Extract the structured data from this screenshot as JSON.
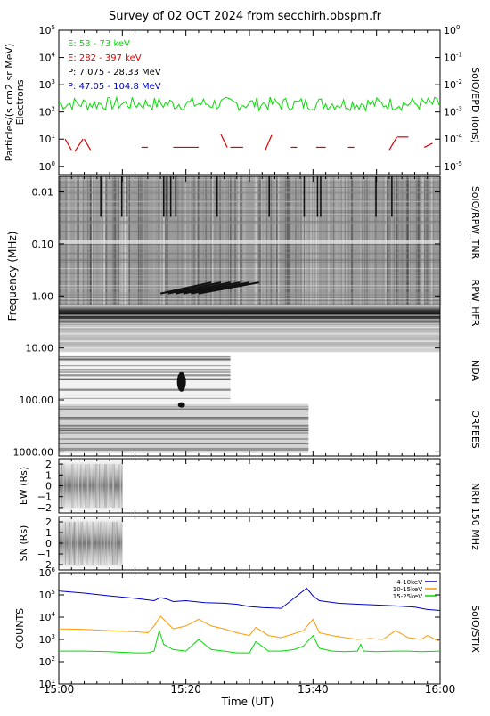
{
  "title": "Survey of 02 OCT 2024 from secchirh.obspm.fr",
  "x_axis": {
    "label": "Time (UT)",
    "range_min": [
      0,
      60
    ],
    "ticks": [
      {
        "min": 0,
        "label": "15:00"
      },
      {
        "min": 20,
        "label": "15:20"
      },
      {
        "min": 40,
        "label": "15:40"
      },
      {
        "min": 60,
        "label": "16:00"
      }
    ]
  },
  "instruments": {
    "epd": "SolO/EPD (ions)",
    "tnr": "SolO/RPW_TNR",
    "hfr": "RPW_HFR",
    "nda": "NDA",
    "orfees": "ORFEES",
    "nrh": "NRH 150 MHz",
    "stix": "SolO/STIX"
  },
  "chart_data": [
    {
      "type": "line",
      "panel": "epd",
      "ylabel": "Particles/(s cm2 sr MeV)",
      "ylabel_line2": "Electrons",
      "ylabel_right": "SolO/EPD (ions)",
      "yscale": "log",
      "ylim": [
        0.5,
        100000
      ],
      "yticks_left": [
        {
          "base": "10",
          "exp": "0"
        },
        {
          "base": "10",
          "exp": "1"
        },
        {
          "base": "10",
          "exp": "2"
        },
        {
          "base": "10",
          "exp": "3"
        },
        {
          "base": "10",
          "exp": "4"
        },
        {
          "base": "10",
          "exp": "5"
        }
      ],
      "yticks_right": [
        {
          "base": "10",
          "exp": "-5"
        },
        {
          "base": "10",
          "exp": "-4"
        },
        {
          "base": "10",
          "exp": "-3"
        },
        {
          "base": "10",
          "exp": "-2"
        },
        {
          "base": "10",
          "exp": "-1"
        },
        {
          "base": "10",
          "exp": "0"
        }
      ],
      "legend": [
        {
          "label": "E: 53 - 73 keV",
          "color": "#00dd00"
        },
        {
          "label": "E: 282 - 397 keV",
          "color": "#dd0000"
        },
        {
          "label": "P: 7.075 - 28.33 MeV",
          "color": "#000000"
        },
        {
          "label": "P: 47.05 - 104.8 MeV",
          "color": "#0000cc"
        }
      ],
      "series": [
        {
          "name": "E: 53 - 73 keV",
          "color": "#00dd00",
          "level": 200,
          "jitter": 0.5
        },
        {
          "name": "E: 282 - 397 keV",
          "color": "#dd0000",
          "segments": [
            [
              [
                1.0,
                10
              ],
              [
                2.0,
                4
              ]
            ],
            [
              [
                2.5,
                3.5
              ],
              [
                3.8,
                10
              ]
            ],
            [
              [
                4.0,
                10
              ],
              [
                5.0,
                4
              ]
            ],
            [
              [
                13.0,
                5
              ],
              [
                14.0,
                5
              ]
            ],
            [
              [
                18.0,
                5
              ],
              [
                22.0,
                5
              ]
            ],
            [
              [
                25.5,
                15
              ],
              [
                26.5,
                5
              ]
            ],
            [
              [
                27.0,
                5
              ],
              [
                29.0,
                5
              ]
            ],
            [
              [
                32.5,
                4
              ],
              [
                33.5,
                14
              ]
            ],
            [
              [
                36.5,
                5
              ],
              [
                37.5,
                5
              ]
            ],
            [
              [
                40.5,
                5
              ],
              [
                42.0,
                5
              ]
            ],
            [
              [
                45.5,
                5
              ],
              [
                46.5,
                5
              ]
            ],
            [
              [
                52.0,
                4
              ],
              [
                53.2,
                12
              ]
            ],
            [
              [
                53.3,
                12
              ],
              [
                55.0,
                12
              ]
            ],
            [
              [
                57.5,
                5
              ],
              [
                58.8,
                7
              ]
            ]
          ]
        }
      ]
    },
    {
      "type": "heatmap",
      "panel": "radio-spectrogram",
      "ylabel": "Frequency (MHz)",
      "yscale": "log",
      "ylim": [
        0.005,
        1200
      ],
      "yticks": [
        {
          "v": 0.01,
          "label": "0.01"
        },
        {
          "v": 0.1,
          "label": "0.10"
        },
        {
          "v": 1,
          "label": "1.00"
        },
        {
          "v": 10,
          "label": "10.00"
        },
        {
          "v": 100,
          "label": "100.00"
        },
        {
          "v": 1000,
          "label": "1000.00"
        }
      ]
    },
    {
      "type": "heatmap",
      "panel": "nrh-ew",
      "ylabel": "EW (Rs)",
      "ylim": [
        -2.5,
        2.5
      ],
      "yticks": [
        {
          "v": 2,
          "label": "2"
        },
        {
          "v": 1,
          "label": "1"
        },
        {
          "v": 0,
          "label": "0"
        },
        {
          "v": -1,
          "label": "−1"
        },
        {
          "v": -2,
          "label": "−2"
        }
      ]
    },
    {
      "type": "heatmap",
      "panel": "nrh-sn",
      "ylabel": "SN (Rs)",
      "ylim": [
        -2.5,
        2.5
      ],
      "yticks": [
        {
          "v": 2,
          "label": "2"
        },
        {
          "v": 1,
          "label": "1"
        },
        {
          "v": 0,
          "label": "0"
        },
        {
          "v": -1,
          "label": "−1"
        },
        {
          "v": -2,
          "label": "−2"
        }
      ]
    },
    {
      "type": "line",
      "panel": "stix",
      "ylabel": "COUNTS",
      "ylabel_right": "SolO/STIX",
      "yscale": "log",
      "ylim": [
        10,
        1000000
      ],
      "yticks": [
        {
          "base": "10",
          "exp": "1"
        },
        {
          "base": "10",
          "exp": "2"
        },
        {
          "base": "10",
          "exp": "3"
        },
        {
          "base": "10",
          "exp": "4"
        },
        {
          "base": "10",
          "exp": "5"
        },
        {
          "base": "10",
          "exp": "6"
        }
      ],
      "series": [
        {
          "name": "4-10keV",
          "color": "#0000cc",
          "x": [
            0,
            4,
            8,
            12,
            15,
            16,
            17,
            18,
            20,
            23,
            26,
            28,
            30,
            32,
            35,
            37,
            39,
            40,
            41,
            42,
            44,
            47,
            50,
            53,
            56,
            58,
            60
          ],
          "y": [
            150000,
            120000,
            90000,
            70000,
            55000,
            75000,
            65000,
            50000,
            55000,
            45000,
            42000,
            38000,
            30000,
            27000,
            25000,
            70000,
            200000,
            90000,
            55000,
            50000,
            42000,
            38000,
            35000,
            32000,
            28000,
            22000,
            20000
          ]
        },
        {
          "name": "10-15keV",
          "color": "#ff9900",
          "x": [
            0,
            4,
            8,
            12,
            14,
            15,
            16,
            16.5,
            18,
            20,
            22,
            24,
            26,
            28,
            30,
            31,
            33,
            35,
            37,
            38.5,
            40,
            41,
            43,
            45,
            47,
            49,
            51,
            53,
            55,
            57,
            58,
            60
          ],
          "y": [
            3000,
            2800,
            2500,
            2200,
            2000,
            4000,
            11000,
            8000,
            3000,
            4000,
            8000,
            4000,
            3000,
            2000,
            1500,
            3500,
            1500,
            1200,
            1800,
            2500,
            8000,
            2000,
            1500,
            1200,
            1000,
            1100,
            1000,
            2500,
            1200,
            1000,
            1500,
            800
          ]
        },
        {
          "name": "15-25keV",
          "color": "#00dd00",
          "x": [
            0,
            4,
            8,
            12,
            14,
            15,
            15.8,
            16.5,
            18,
            20,
            22,
            24,
            26,
            28,
            30,
            31,
            33,
            35,
            37,
            38.5,
            40,
            41,
            43,
            45,
            47,
            47.5,
            48,
            50,
            53,
            55,
            57,
            60
          ],
          "y": [
            300,
            300,
            280,
            250,
            250,
            300,
            2500,
            600,
            350,
            300,
            1000,
            350,
            300,
            250,
            250,
            800,
            300,
            300,
            350,
            500,
            1500,
            400,
            300,
            280,
            300,
            600,
            300,
            280,
            300,
            300,
            280,
            300
          ]
        }
      ]
    }
  ]
}
